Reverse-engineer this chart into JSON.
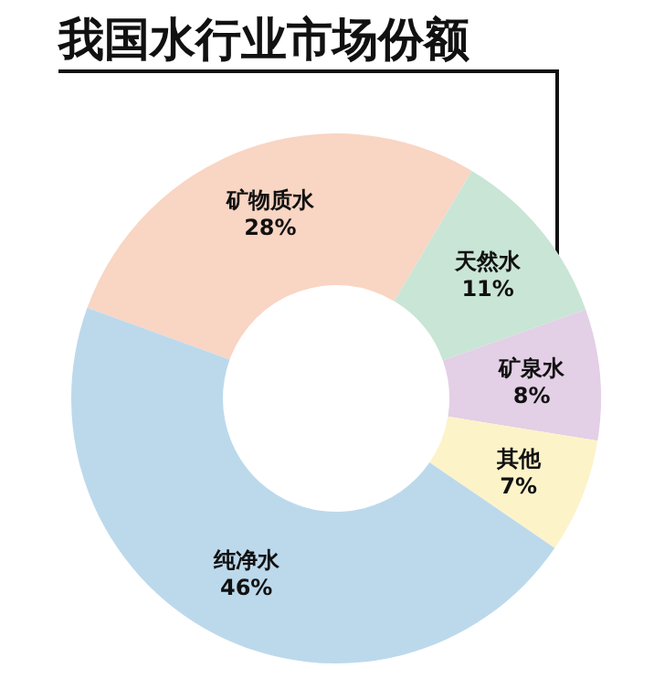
{
  "chart_data": {
    "type": "donut",
    "title": "我国水行业市场份额",
    "categories": [
      "矿物质水",
      "天然水",
      "矿泉水",
      "其他",
      "纯净水"
    ],
    "values": [
      28,
      11,
      8,
      7,
      46
    ],
    "value_labels": [
      "28%",
      "11%",
      "8%",
      "7%",
      "46%"
    ],
    "colors": [
      "#f9d5c3",
      "#c9e5d6",
      "#e3cfe6",
      "#fdf3c9",
      "#bcd9ec"
    ]
  }
}
